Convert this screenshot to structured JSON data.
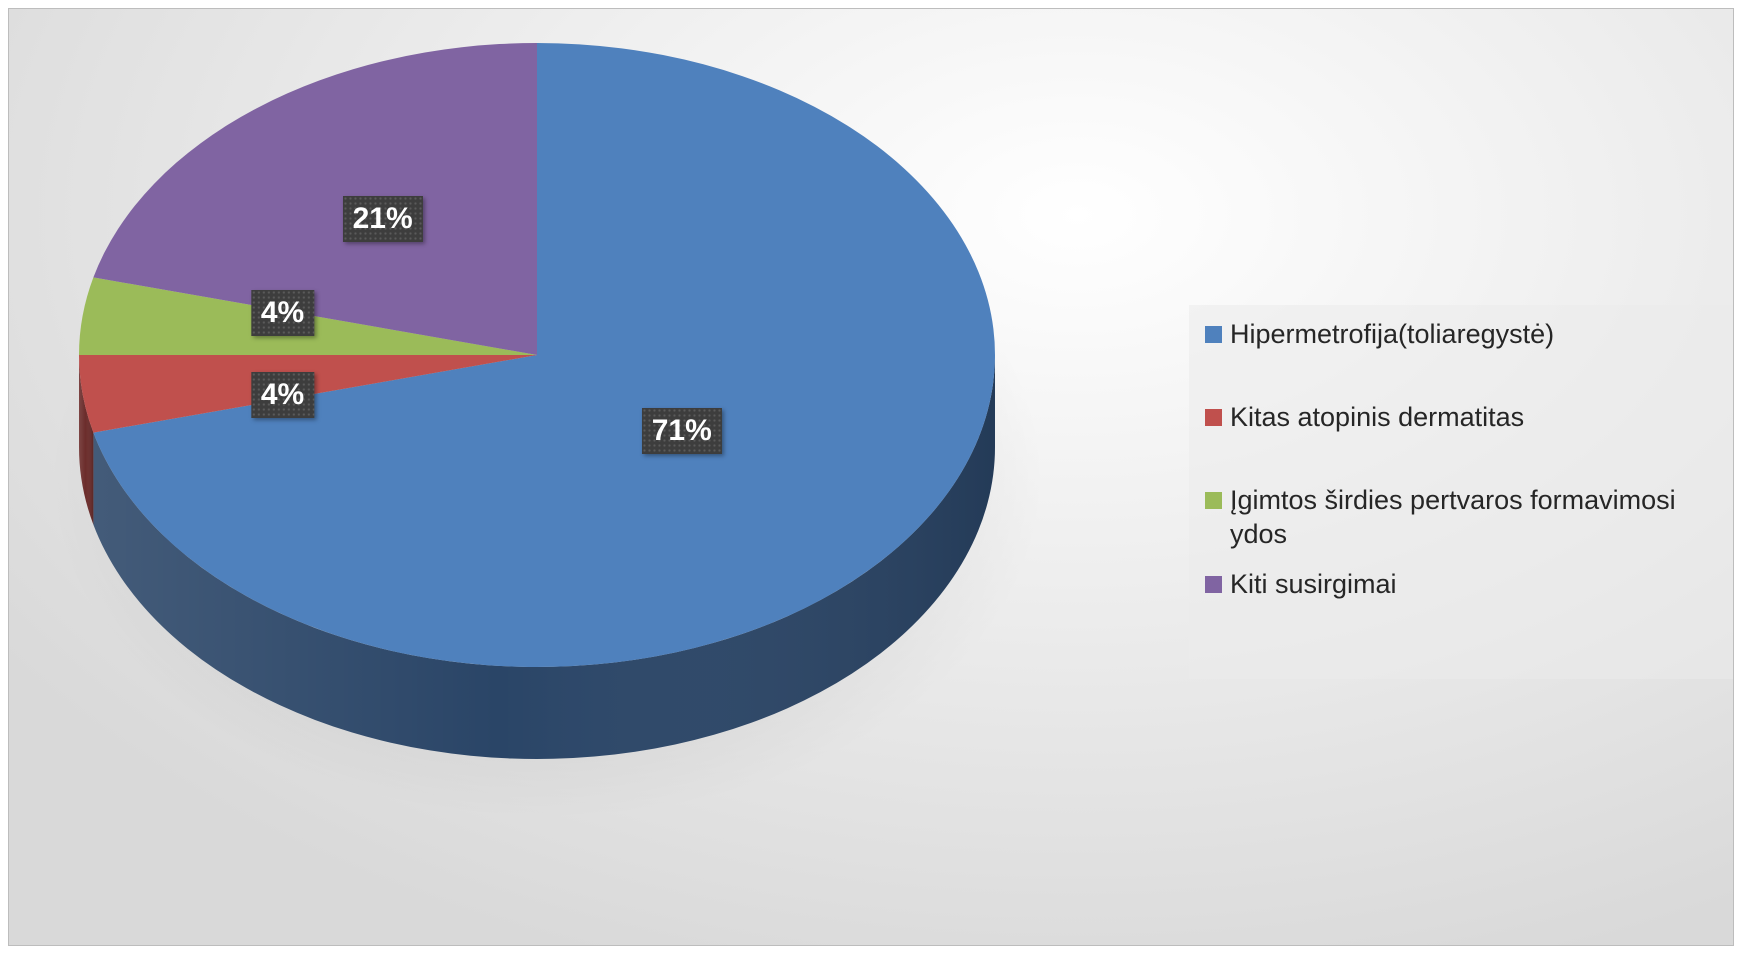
{
  "chart_data": {
    "type": "pie",
    "title": "",
    "categories": [
      "Hipermetrofija(toliaregystė)",
      "Kitas atopinis dermatitas",
      "Įgimtos širdies pertvaros formavimosi ydos",
      "Kiti susirgimai"
    ],
    "values": [
      71,
      4,
      4,
      21
    ],
    "labels": [
      "71%",
      "4%",
      "4%",
      "21%"
    ],
    "colors": [
      "#4f81bd",
      "#c0504d",
      "#9bbb59",
      "#8064a2"
    ],
    "side_colors": [
      "#2a4567",
      "#6b2c2b",
      "#56693a",
      "#483a5e"
    ],
    "style": "3d",
    "legend_position": "right"
  }
}
